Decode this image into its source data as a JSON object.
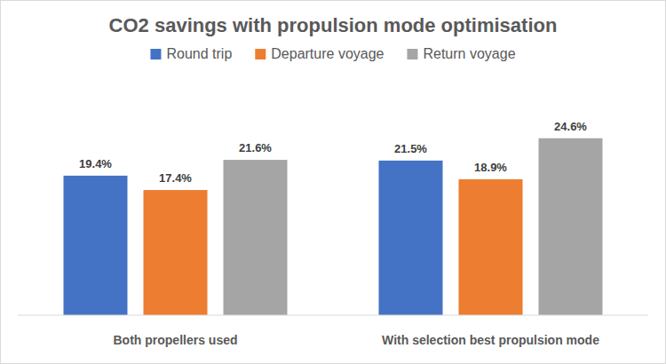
{
  "chart_data": {
    "type": "bar",
    "title": "CO2 savings with propulsion mode optimisation",
    "categories": [
      "Both propellers used",
      "With selection best propulsion mode"
    ],
    "series": [
      {
        "name": "Round trip",
        "color": "#4472c4",
        "values": [
          19.4,
          21.5
        ],
        "value_labels": [
          "19.4%",
          "21.5%"
        ]
      },
      {
        "name": "Departure voyage",
        "color": "#ed7d31",
        "values": [
          17.4,
          18.9
        ],
        "value_labels": [
          "17.4%",
          "18.9%"
        ]
      },
      {
        "name": "Return voyage",
        "color": "#a5a5a5",
        "values": [
          21.6,
          24.6
        ],
        "value_labels": [
          "21.6%",
          "24.6%"
        ]
      }
    ],
    "ylim": [
      0,
      30
    ],
    "grid": false,
    "legend": "top",
    "data_labels": true,
    "tick_labels": "x"
  }
}
